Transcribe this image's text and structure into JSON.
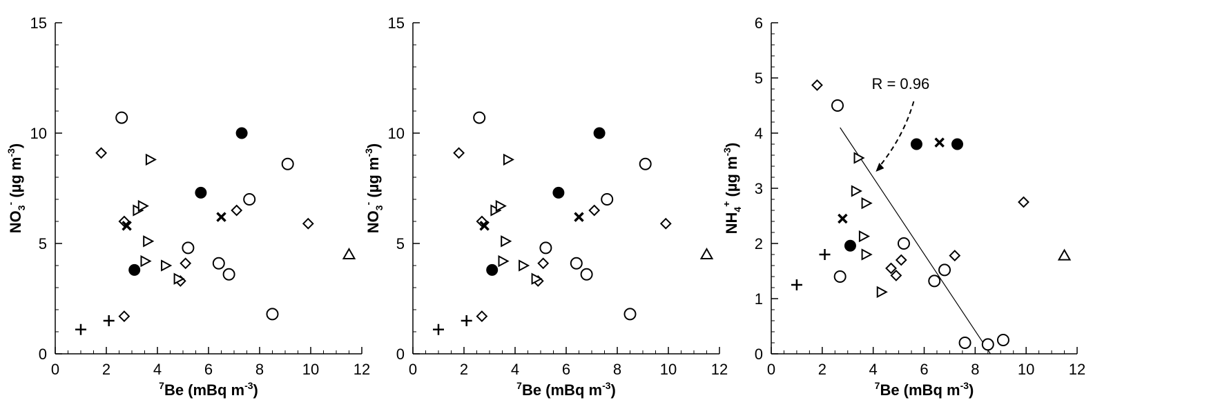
{
  "chart_data": [
    {
      "type": "scatter",
      "title": "",
      "xlabel": "7Be (mBq m-3)",
      "xlabel_parts": {
        "pre": "7",
        "main": "Be (mBq m",
        "sup": "-3",
        "post": ")"
      },
      "ylabel": "NO3- (µg m-3)",
      "ylabel_parts": {
        "main": "NO",
        "sub": "3",
        "sup": "-",
        "units": " (µg m",
        "usup": "-3",
        "post": ")"
      },
      "xlim": [
        0,
        12
      ],
      "ylim": [
        0,
        15
      ],
      "xticks": [
        "0",
        "2",
        "4",
        "6",
        "8",
        "10",
        "12"
      ],
      "yticks": [
        "0",
        "5",
        "10",
        "15"
      ],
      "grid": false,
      "points": [
        {
          "marker": "cross",
          "x": 1.0,
          "y": 1.1
        },
        {
          "marker": "cross",
          "x": 2.1,
          "y": 1.5
        },
        {
          "marker": "diamond",
          "x": 1.8,
          "y": 9.1
        },
        {
          "marker": "diamond",
          "x": 2.7,
          "y": 1.7
        },
        {
          "marker": "diamond",
          "x": 2.7,
          "y": 6.0
        },
        {
          "marker": "diamond",
          "x": 4.9,
          "y": 3.3
        },
        {
          "marker": "diamond",
          "x": 5.1,
          "y": 4.1
        },
        {
          "marker": "diamond",
          "x": 7.1,
          "y": 6.5
        },
        {
          "marker": "diamond",
          "x": 9.9,
          "y": 5.9
        },
        {
          "marker": "circle",
          "x": 2.6,
          "y": 10.7
        },
        {
          "marker": "circle",
          "x": 5.2,
          "y": 4.8
        },
        {
          "marker": "circle",
          "x": 6.4,
          "y": 4.1
        },
        {
          "marker": "circle",
          "x": 6.8,
          "y": 3.6
        },
        {
          "marker": "circle",
          "x": 7.6,
          "y": 7.0
        },
        {
          "marker": "circle",
          "x": 8.5,
          "y": 1.8
        },
        {
          "marker": "circle",
          "x": 9.1,
          "y": 8.6
        },
        {
          "marker": "filled-circle",
          "x": 3.1,
          "y": 3.8
        },
        {
          "marker": "filled-circle",
          "x": 5.7,
          "y": 7.3
        },
        {
          "marker": "filled-circle",
          "x": 7.3,
          "y": 10.0
        },
        {
          "marker": "x",
          "x": 2.8,
          "y": 5.8
        },
        {
          "marker": "x",
          "x": 6.5,
          "y": 6.2
        },
        {
          "marker": "triangle-right",
          "x": 3.2,
          "y": 6.5
        },
        {
          "marker": "triangle-right",
          "x": 3.4,
          "y": 6.7
        },
        {
          "marker": "triangle-right",
          "x": 3.7,
          "y": 8.8
        },
        {
          "marker": "triangle-right",
          "x": 3.6,
          "y": 5.1
        },
        {
          "marker": "triangle-right",
          "x": 3.5,
          "y": 4.2
        },
        {
          "marker": "triangle-right",
          "x": 4.3,
          "y": 4.0
        },
        {
          "marker": "triangle-right",
          "x": 4.8,
          "y": 3.4
        },
        {
          "marker": "triangle-up",
          "x": 11.5,
          "y": 4.5
        }
      ]
    },
    {
      "type": "scatter",
      "title": "",
      "xlabel": "7Be (mBq m-3)",
      "xlabel_parts": {
        "pre": "7",
        "main": "Be (mBq m",
        "sup": "-3",
        "post": ")"
      },
      "ylabel": "NO3- (µg m-3)",
      "ylabel_parts": {
        "main": "NO",
        "sub": "3",
        "sup": "-",
        "units": " (µg m",
        "usup": "-3",
        "post": ")"
      },
      "xlim": [
        0,
        12
      ],
      "ylim": [
        0,
        15
      ],
      "xticks": [
        "0",
        "2",
        "4",
        "6",
        "8",
        "10",
        "12"
      ],
      "yticks": [
        "0",
        "5",
        "10",
        "15"
      ],
      "grid": false,
      "points": [
        {
          "marker": "cross",
          "x": 1.0,
          "y": 1.1
        },
        {
          "marker": "cross",
          "x": 2.1,
          "y": 1.5
        },
        {
          "marker": "diamond",
          "x": 1.8,
          "y": 9.1
        },
        {
          "marker": "diamond",
          "x": 2.7,
          "y": 1.7
        },
        {
          "marker": "diamond",
          "x": 2.7,
          "y": 6.0
        },
        {
          "marker": "diamond",
          "x": 4.9,
          "y": 3.3
        },
        {
          "marker": "diamond",
          "x": 5.1,
          "y": 4.1
        },
        {
          "marker": "diamond",
          "x": 7.1,
          "y": 6.5
        },
        {
          "marker": "diamond",
          "x": 9.9,
          "y": 5.9
        },
        {
          "marker": "circle",
          "x": 2.6,
          "y": 10.7
        },
        {
          "marker": "circle",
          "x": 5.2,
          "y": 4.8
        },
        {
          "marker": "circle",
          "x": 6.4,
          "y": 4.1
        },
        {
          "marker": "circle",
          "x": 6.8,
          "y": 3.6
        },
        {
          "marker": "circle",
          "x": 7.6,
          "y": 7.0
        },
        {
          "marker": "circle",
          "x": 8.5,
          "y": 1.8
        },
        {
          "marker": "circle",
          "x": 9.1,
          "y": 8.6
        },
        {
          "marker": "filled-circle",
          "x": 3.1,
          "y": 3.8
        },
        {
          "marker": "filled-circle",
          "x": 5.7,
          "y": 7.3
        },
        {
          "marker": "filled-circle",
          "x": 7.3,
          "y": 10.0
        },
        {
          "marker": "x",
          "x": 2.8,
          "y": 5.8
        },
        {
          "marker": "x",
          "x": 6.5,
          "y": 6.2
        },
        {
          "marker": "triangle-right",
          "x": 3.2,
          "y": 6.5
        },
        {
          "marker": "triangle-right",
          "x": 3.4,
          "y": 6.7
        },
        {
          "marker": "triangle-right",
          "x": 3.7,
          "y": 8.8
        },
        {
          "marker": "triangle-right",
          "x": 3.6,
          "y": 5.1
        },
        {
          "marker": "triangle-right",
          "x": 3.5,
          "y": 4.2
        },
        {
          "marker": "triangle-right",
          "x": 4.3,
          "y": 4.0
        },
        {
          "marker": "triangle-right",
          "x": 4.8,
          "y": 3.4
        },
        {
          "marker": "triangle-up",
          "x": 11.5,
          "y": 4.5
        }
      ]
    },
    {
      "type": "scatter",
      "title": "",
      "xlabel": "7Be (mBq m-3)",
      "xlabel_parts": {
        "pre": "7",
        "main": "Be (mBq m",
        "sup": "-3",
        "post": ")"
      },
      "ylabel": "NH4+ (µg m-3)",
      "ylabel_parts": {
        "main": "NH",
        "sub": "4",
        "sup": "+",
        "units": " (µg m",
        "usup": "-3",
        "post": ")"
      },
      "xlim": [
        0,
        12
      ],
      "ylim": [
        0,
        6
      ],
      "xticks": [
        "0",
        "2",
        "4",
        "6",
        "8",
        "10",
        "12"
      ],
      "yticks": [
        "0",
        "1",
        "2",
        "3",
        "4",
        "5",
        "6"
      ],
      "grid": false,
      "annotation": {
        "text": "R = 0.96",
        "arrow_to": {
          "x": 4.1,
          "y": 3.3
        }
      },
      "regression_line": [
        {
          "x": 2.7,
          "y": 4.1
        },
        {
          "x": 8.6,
          "y": 0.0
        }
      ],
      "points": [
        {
          "marker": "cross",
          "x": 1.0,
          "y": 1.25
        },
        {
          "marker": "cross",
          "x": 2.1,
          "y": 1.8
        },
        {
          "marker": "diamond",
          "x": 1.8,
          "y": 4.87
        },
        {
          "marker": "diamond",
          "x": 2.7,
          "y": 1.4
        },
        {
          "marker": "diamond",
          "x": 4.7,
          "y": 1.55
        },
        {
          "marker": "diamond",
          "x": 4.9,
          "y": 1.42
        },
        {
          "marker": "diamond",
          "x": 5.1,
          "y": 1.7
        },
        {
          "marker": "diamond",
          "x": 7.2,
          "y": 1.78
        },
        {
          "marker": "diamond",
          "x": 9.9,
          "y": 2.75
        },
        {
          "marker": "circle",
          "x": 2.6,
          "y": 4.5
        },
        {
          "marker": "circle",
          "x": 2.7,
          "y": 1.4
        },
        {
          "marker": "circle",
          "x": 5.2,
          "y": 2.0
        },
        {
          "marker": "circle",
          "x": 6.4,
          "y": 1.32
        },
        {
          "marker": "circle",
          "x": 6.8,
          "y": 1.52
        },
        {
          "marker": "circle",
          "x": 7.6,
          "y": 0.2
        },
        {
          "marker": "circle",
          "x": 8.5,
          "y": 0.17
        },
        {
          "marker": "circle",
          "x": 9.1,
          "y": 0.25
        },
        {
          "marker": "filled-circle",
          "x": 3.1,
          "y": 1.96
        },
        {
          "marker": "filled-circle",
          "x": 5.7,
          "y": 3.8
        },
        {
          "marker": "filled-circle",
          "x": 7.3,
          "y": 3.8
        },
        {
          "marker": "x",
          "x": 2.8,
          "y": 2.45
        },
        {
          "marker": "x",
          "x": 6.6,
          "y": 3.83
        },
        {
          "marker": "triangle-right",
          "x": 3.3,
          "y": 2.95
        },
        {
          "marker": "triangle-right",
          "x": 3.4,
          "y": 3.55
        },
        {
          "marker": "triangle-right",
          "x": 3.7,
          "y": 2.73
        },
        {
          "marker": "triangle-right",
          "x": 3.6,
          "y": 2.13
        },
        {
          "marker": "triangle-right",
          "x": 3.7,
          "y": 1.8
        },
        {
          "marker": "triangle-right",
          "x": 4.3,
          "y": 1.12
        },
        {
          "marker": "triangle-up",
          "x": 11.5,
          "y": 1.78
        }
      ]
    }
  ]
}
